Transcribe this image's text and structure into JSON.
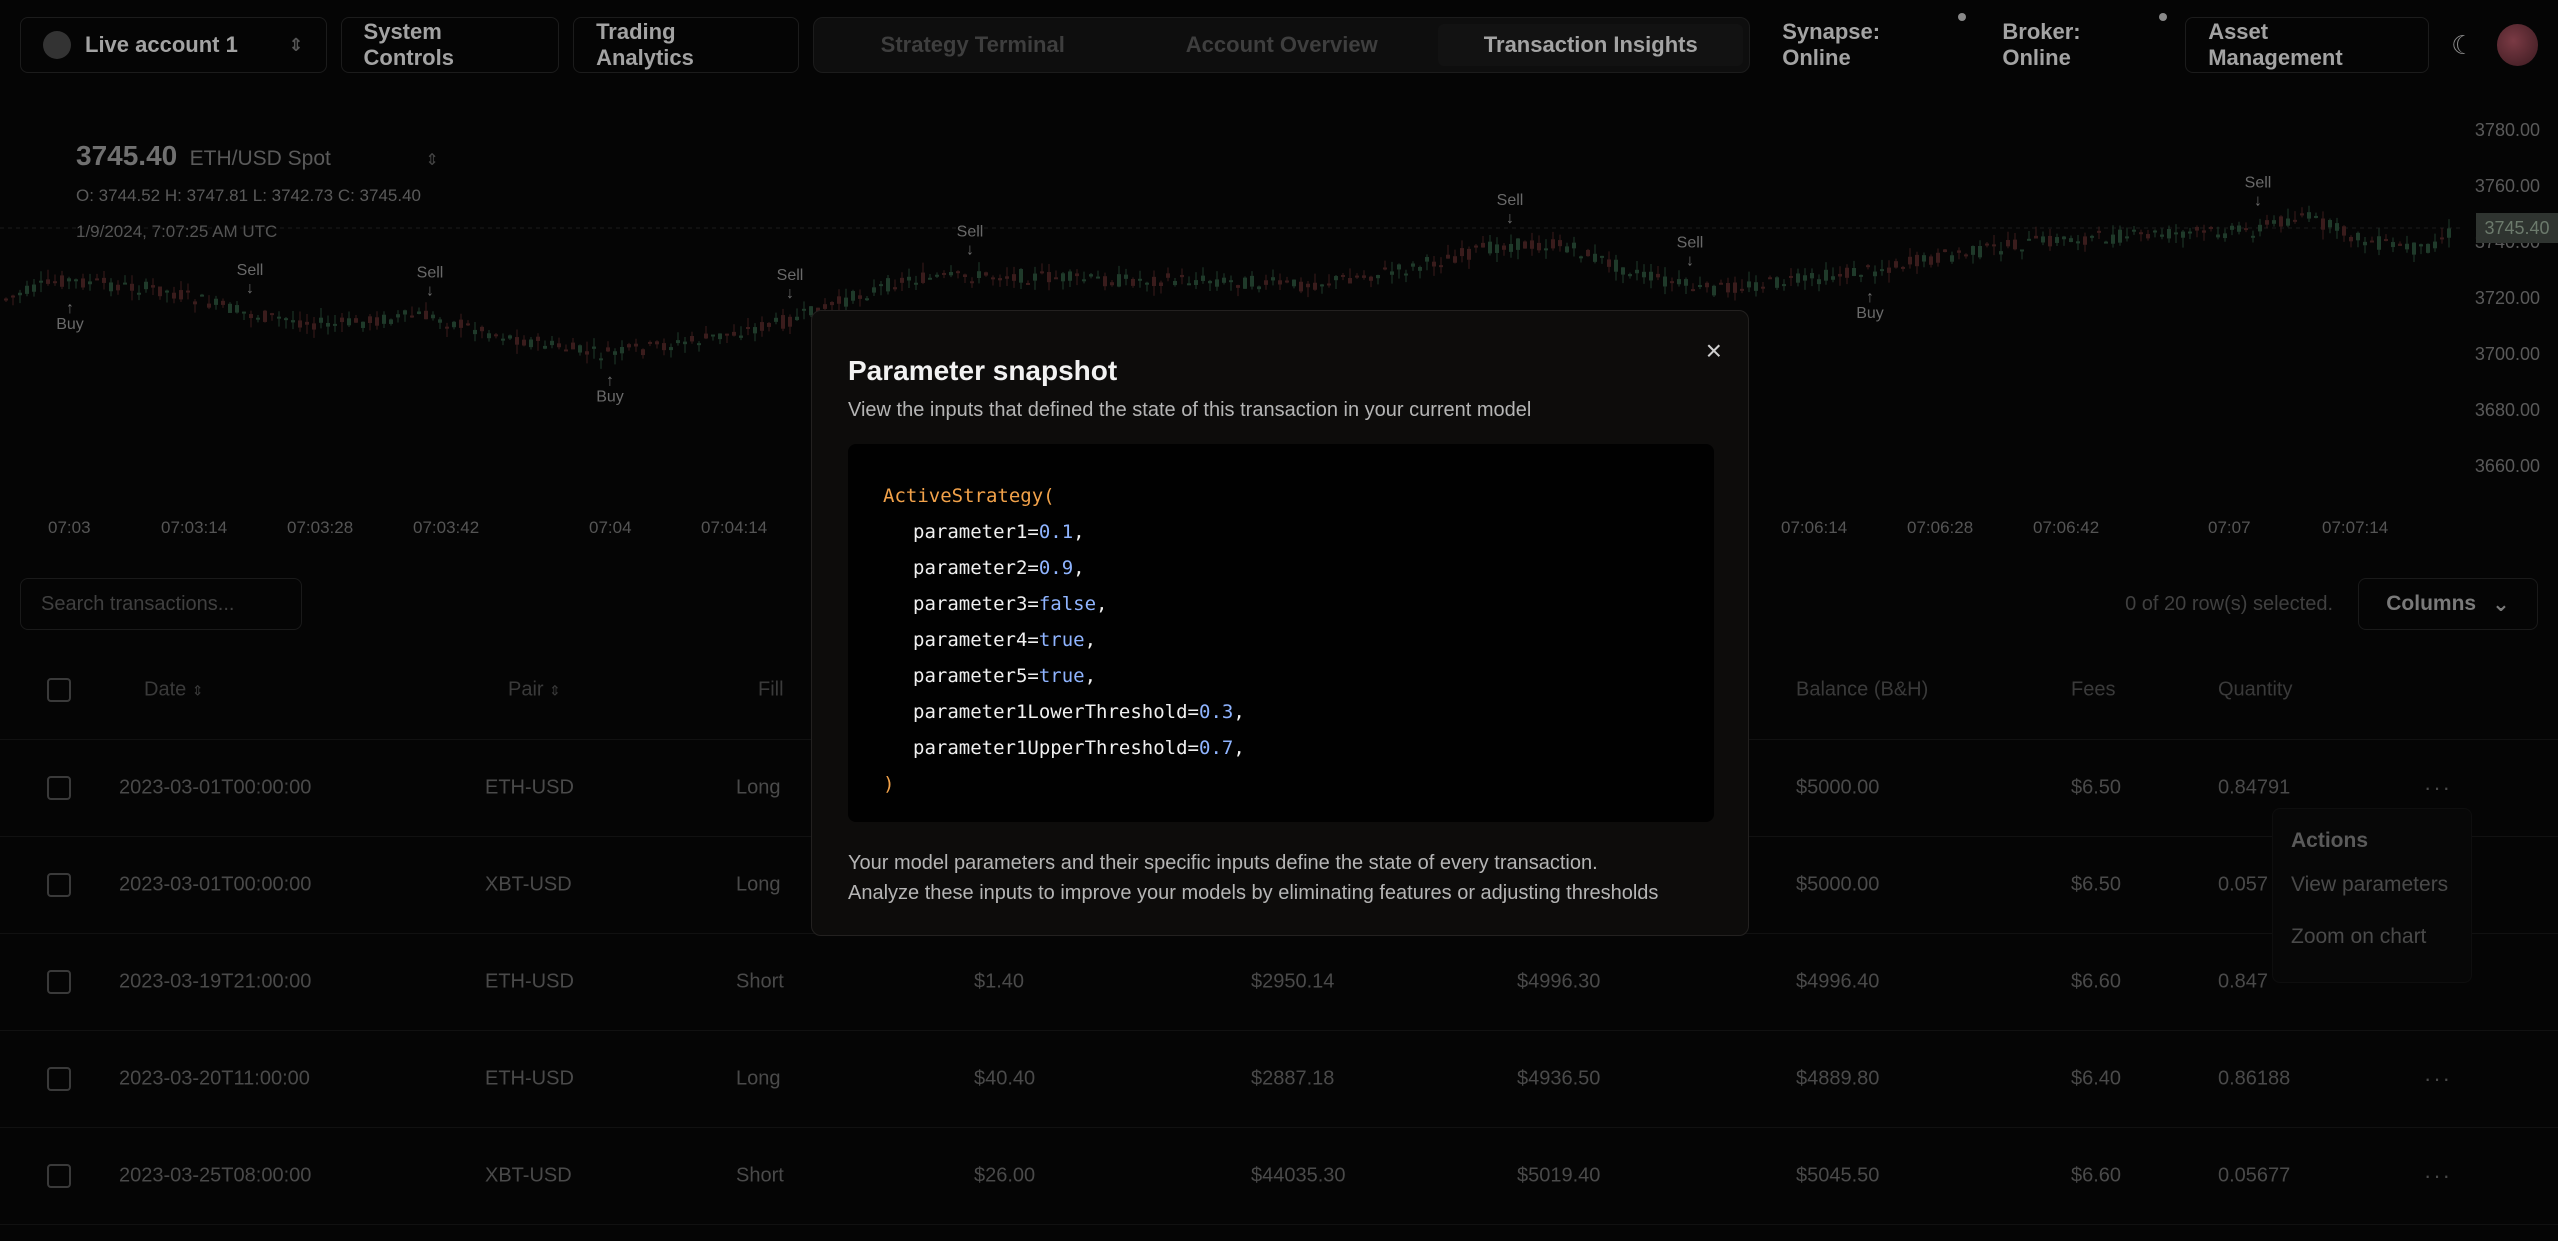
{
  "nav": {
    "account": "Live account 1",
    "system_controls": "System Controls",
    "trading_analytics": "Trading Analytics",
    "tabs": [
      "Strategy Terminal",
      "Account Overview",
      "Transaction Insights"
    ],
    "active_tab": 2,
    "synapse": "Synapse: Online",
    "broker": "Broker: Online",
    "asset_management": "Asset Management"
  },
  "chart": {
    "price": "3745.40",
    "pair": "ETH/USD Spot",
    "ohlc": "O: 3744.52   H: 3747.81   L: 3742.73   C: 3745.40",
    "timestamp": "1/9/2024, 7:07:25 AM UTC",
    "current_price_label": "3745.40",
    "y_ticks": [
      "3780.00",
      "3760.00",
      "3740.00",
      "3720.00",
      "3700.00",
      "3680.00",
      "3660.00"
    ],
    "x_ticks": [
      {
        "t": "07:03"
      },
      {
        "t": "07:03:14"
      },
      {
        "t": "07:03:28"
      },
      {
        "t": "07:03:42"
      },
      {
        "t": "07:04"
      },
      {
        "t": "07:04:14"
      },
      {
        "t": "07:06:14"
      },
      {
        "t": "07:06:28"
      },
      {
        "t": "07:06:42"
      },
      {
        "t": "07:07"
      },
      {
        "t": "07:07:14"
      }
    ],
    "markers": [
      {
        "label": "Buy",
        "type": "buy"
      },
      {
        "label": "Sell",
        "type": "sell"
      },
      {
        "label": "Sell",
        "type": "sell"
      },
      {
        "label": "Buy",
        "type": "buy"
      },
      {
        "label": "Sell",
        "type": "sell"
      },
      {
        "label": "Sell",
        "type": "sell"
      },
      {
        "label": "Sell",
        "type": "sell"
      },
      {
        "label": "Sell",
        "type": "sell"
      },
      {
        "label": "Buy",
        "type": "buy"
      },
      {
        "label": "Sell",
        "type": "sell"
      }
    ]
  },
  "toolbar": {
    "search_placeholder": "Search transactions...",
    "selected": "0 of 20 row(s) selected.",
    "columns": "Columns"
  },
  "table": {
    "headers": {
      "date": "Date",
      "pair": "Pair",
      "fill": "Fill",
      "balance_bh": "Balance (B&H)",
      "fees": "Fees",
      "quantity": "Quantity"
    },
    "rows": [
      {
        "date": "2023-03-01T00:00:00",
        "pair": "ETH-USD",
        "fill": "Long",
        "c4": "",
        "c5": "",
        "c6": "",
        "balance": "$5000.00",
        "fees": "$6.50",
        "qty": "0.84791"
      },
      {
        "date": "2023-03-01T00:00:00",
        "pair": "XBT-USD",
        "fill": "Long",
        "c4": "",
        "c5": "",
        "c6": "",
        "balance": "$5000.00",
        "fees": "$6.50",
        "qty": "0.057"
      },
      {
        "date": "2023-03-19T21:00:00",
        "pair": "ETH-USD",
        "fill": "Short",
        "c4": "$1.40",
        "c5": "$2950.14",
        "c6": "$4996.30",
        "balance": "$4996.40",
        "fees": "$6.60",
        "qty": "0.847"
      },
      {
        "date": "2023-03-20T11:00:00",
        "pair": "ETH-USD",
        "fill": "Long",
        "c4": "$40.40",
        "c5": "$2887.18",
        "c6": "$4936.50",
        "balance": "$4889.80",
        "fees": "$6.40",
        "qty": "0.86188"
      },
      {
        "date": "2023-03-25T08:00:00",
        "pair": "XBT-USD",
        "fill": "Short",
        "c4": "$26.00",
        "c5": "$44035.30",
        "c6": "$5019.40",
        "balance": "$5045.50",
        "fees": "$6.60",
        "qty": "0.05677"
      }
    ]
  },
  "actions_menu": {
    "title": "Actions",
    "view_parameters": "View parameters",
    "zoom_on_chart": "Zoom on chart"
  },
  "modal": {
    "title": "Parameter snapshot",
    "subtitle": "View the inputs that defined the state of this transaction in your current model",
    "code_fn": "ActiveStrategy(",
    "params": [
      {
        "name": "parameter1",
        "value": "0.1"
      },
      {
        "name": "parameter2",
        "value": "0.9"
      },
      {
        "name": "parameter3",
        "value": "false"
      },
      {
        "name": "parameter4",
        "value": "true"
      },
      {
        "name": "parameter5",
        "value": "true"
      },
      {
        "name": "parameter1LowerThreshold",
        "value": "0.3"
      },
      {
        "name": "parameter1UpperThreshold",
        "value": "0.7"
      }
    ],
    "code_close": ")",
    "footer_line1": "Your model parameters and their specific inputs define the state of every transaction.",
    "footer_line2": "Analyze these inputs to improve your models by eliminating features or adjusting thresholds"
  },
  "colors": {
    "background": "#050505",
    "modal_bg": "#0d0c0b",
    "code_fn": "#f2a24a",
    "code_value": "#8fb4ff",
    "candle_up": "#1f3a2a",
    "candle_down": "#3a1c1c"
  }
}
